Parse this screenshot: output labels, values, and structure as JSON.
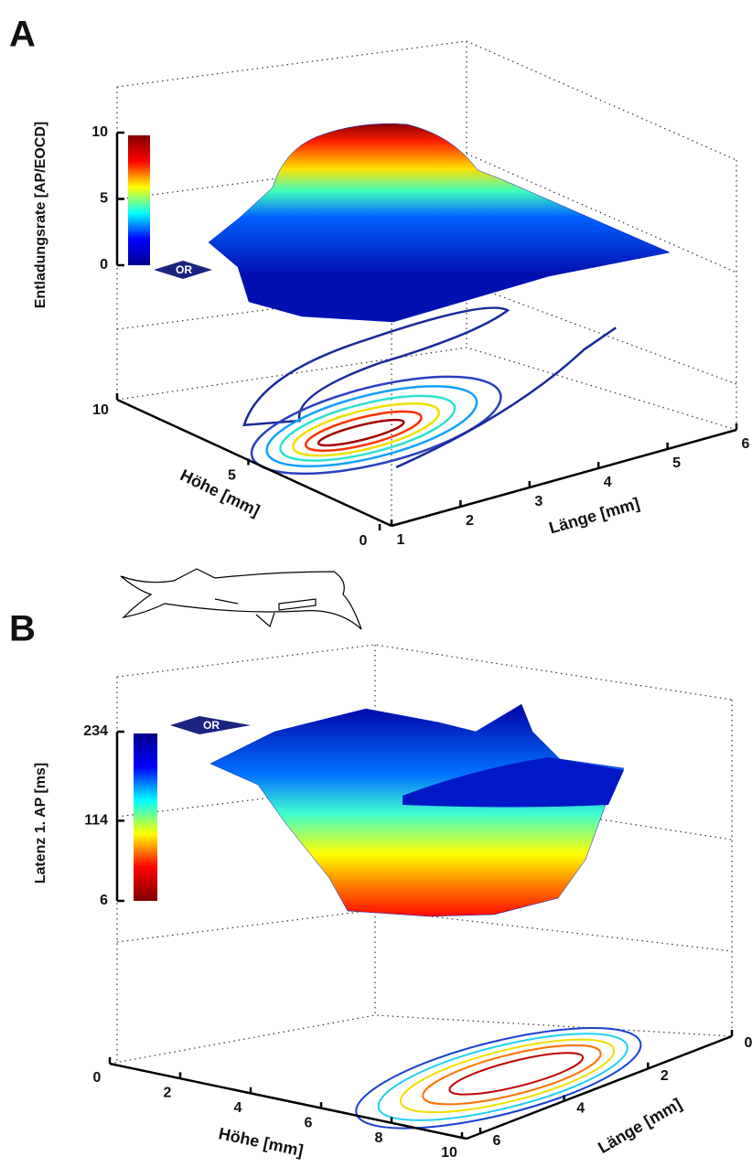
{
  "chart_data": [
    {
      "type": "surface",
      "panel_label": "A",
      "zlabel": "Entladungsrate [AP/EOCD]",
      "xlabel": "Länge [mm]",
      "ylabel": "Höhe [mm]",
      "xlim": [
        1,
        6
      ],
      "xticks": [
        1,
        2,
        3,
        4,
        5,
        6
      ],
      "ylim": [
        0,
        10
      ],
      "yticks": [
        0,
        5,
        10
      ],
      "zlim": [
        0,
        10
      ],
      "zticks": [
        0,
        5,
        10
      ],
      "annotation": "OR",
      "colorbar_colors": [
        "#00008f",
        "#0000ff",
        "#00ffff",
        "#ffff00",
        "#ff0000",
        "#800000"
      ],
      "colorbar_reversed": false
    },
    {
      "type": "surface",
      "panel_label": "B",
      "zlabel": "Latenz 1. AP [ms]",
      "xlabel": "Länge [mm]",
      "ylabel": "Höhe [mm]",
      "xlim": [
        0,
        6
      ],
      "xticks": [
        0,
        2,
        4,
        6
      ],
      "ylim": [
        0,
        10
      ],
      "yticks": [
        0,
        2,
        4,
        6,
        8,
        10
      ],
      "zlim": [
        6,
        234
      ],
      "zticks": [
        6,
        114,
        234
      ],
      "annotation": "OR",
      "colorbar_colors": [
        "#00008f",
        "#0000ff",
        "#00ffff",
        "#ffff00",
        "#ff0000",
        "#800000"
      ],
      "colorbar_reversed": true
    }
  ]
}
